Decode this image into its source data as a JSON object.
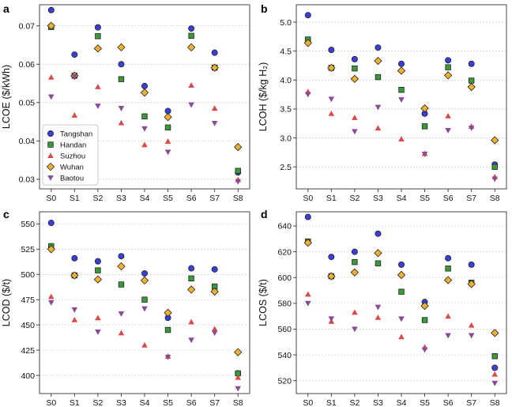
{
  "colors": {
    "Tangshan": "#3b3fd9",
    "Handan": "#3a9a3a",
    "Suzhou": "#d94a4a",
    "Wuhan": "#f2b22e",
    "Baotou": "#8a4a96",
    "grid": "#cccccc"
  },
  "chart_data": [
    {
      "panel": "a",
      "type": "scatter",
      "categories": [
        "S0",
        "S1",
        "S2",
        "S3",
        "S4",
        "S5",
        "S6",
        "S7",
        "S8"
      ],
      "ylabel": "LCOE ($/kWh)",
      "ylim": [
        0.0275,
        0.0755
      ],
      "yticks": [
        0.03,
        0.04,
        0.05,
        0.06,
        0.07
      ],
      "ytick_labels": [
        "0.03",
        "0.04",
        "0.05",
        "0.06",
        "0.07"
      ],
      "grid": "horizontal dashed",
      "legend": "bottom-left",
      "series": [
        {
          "name": "Tangshan",
          "marker": "circle",
          "values": [
            0.0741,
            0.0625,
            0.0696,
            0.06,
            0.0543,
            0.0478,
            0.0693,
            0.063,
            0.0318
          ]
        },
        {
          "name": "Handan",
          "marker": "square",
          "values": [
            0.0697,
            0.057,
            0.0673,
            0.0561,
            0.0464,
            0.0435,
            0.0674,
            0.0591,
            0.0322
          ]
        },
        {
          "name": "Suzhou",
          "marker": "triangle-up",
          "values": [
            0.0566,
            0.0467,
            0.0541,
            0.0447,
            0.039,
            0.0399,
            0.0545,
            0.0485,
            0.0299
          ]
        },
        {
          "name": "Wuhan",
          "marker": "diamond",
          "values": [
            0.07,
            0.057,
            0.0641,
            0.0644,
            0.0526,
            0.0462,
            0.0644,
            0.0591,
            0.0384
          ]
        },
        {
          "name": "Baotou",
          "marker": "triangle-down",
          "values": [
            0.0515,
            0.0568,
            0.0491,
            0.0485,
            0.0432,
            0.0371,
            0.0494,
            0.0446,
            0.0294
          ]
        }
      ]
    },
    {
      "panel": "b",
      "type": "scatter",
      "categories": [
        "S0",
        "S1",
        "S2",
        "S3",
        "S4",
        "S5",
        "S6",
        "S7",
        "S8"
      ],
      "ylabel": "LCOH ($/kg H₂)",
      "ylim": [
        2.12,
        5.3
      ],
      "yticks": [
        2.5,
        3.0,
        3.5,
        4.0,
        4.5,
        5.0
      ],
      "ytick_labels": [
        "2.5",
        "3.0",
        "3.5",
        "4.0",
        "4.5",
        "5.0"
      ],
      "grid": "horizontal dashed",
      "series": [
        {
          "name": "Tangshan",
          "marker": "circle",
          "values": [
            5.12,
            4.52,
            4.36,
            4.56,
            4.28,
            3.42,
            4.34,
            4.28,
            2.54
          ]
        },
        {
          "name": "Handan",
          "marker": "square",
          "values": [
            4.7,
            4.21,
            4.2,
            4.05,
            3.83,
            3.2,
            4.22,
            3.99,
            2.5
          ]
        },
        {
          "name": "Suzhou",
          "marker": "triangle-up",
          "values": [
            3.8,
            3.42,
            3.35,
            3.17,
            2.98,
            2.73,
            3.38,
            3.2,
            2.33
          ]
        },
        {
          "name": "Wuhan",
          "marker": "diamond",
          "values": [
            4.64,
            4.21,
            4.02,
            4.33,
            4.16,
            3.51,
            4.08,
            3.88,
            2.96
          ]
        },
        {
          "name": "Baotou",
          "marker": "triangle-down",
          "values": [
            3.75,
            3.67,
            3.11,
            3.53,
            3.66,
            2.72,
            3.13,
            3.17,
            2.29
          ]
        }
      ]
    },
    {
      "panel": "c",
      "type": "scatter",
      "categories": [
        "S0",
        "S1",
        "S2",
        "S3",
        "S4",
        "S5",
        "S6",
        "S7",
        "S8"
      ],
      "ylabel": "LCOD ($/t)",
      "ylim": [
        382,
        562
      ],
      "yticks": [
        400,
        425,
        450,
        475,
        500,
        525,
        550
      ],
      "ytick_labels": [
        "400",
        "425",
        "450",
        "475",
        "500",
        "525",
        "550"
      ],
      "grid": "horizontal dashed",
      "series": [
        {
          "name": "Tangshan",
          "marker": "circle",
          "values": [
            551,
            516,
            513,
            518,
            501,
            457,
            506,
            505,
            402
          ]
        },
        {
          "name": "Handan",
          "marker": "square",
          "values": [
            528,
            499,
            504,
            490,
            475,
            445,
            496,
            488,
            402
          ]
        },
        {
          "name": "Suzhou",
          "marker": "triangle-up",
          "values": [
            478,
            455,
            457,
            442,
            430,
            419,
            453,
            446,
            398
          ]
        },
        {
          "name": "Wuhan",
          "marker": "diamond",
          "values": [
            525,
            499,
            495,
            508,
            494,
            462,
            485,
            483,
            423
          ]
        },
        {
          "name": "Baotou",
          "marker": "triangle-down",
          "values": [
            472,
            465,
            443,
            461,
            466,
            418,
            435,
            442,
            387
          ]
        }
      ]
    },
    {
      "panel": "d",
      "type": "scatter",
      "categories": [
        "S0",
        "S1",
        "S2",
        "S3",
        "S4",
        "S5",
        "S6",
        "S7",
        "S8"
      ],
      "ylabel": "LCOS ($/t)",
      "ylim": [
        510,
        651
      ],
      "yticks": [
        520,
        540,
        560,
        580,
        600,
        620,
        640
      ],
      "ytick_labels": [
        "520",
        "540",
        "560",
        "580",
        "600",
        "620",
        "640"
      ],
      "grid": "horizontal dashed",
      "series": [
        {
          "name": "Tangshan",
          "marker": "circle",
          "values": [
            647,
            616,
            620,
            634,
            610,
            581,
            615,
            610,
            530
          ]
        },
        {
          "name": "Handan",
          "marker": "square",
          "values": [
            628,
            601,
            612,
            611,
            589,
            567,
            607,
            596,
            539
          ]
        },
        {
          "name": "Suzhou",
          "marker": "triangle-up",
          "values": [
            587,
            566,
            573,
            569,
            554,
            546,
            570,
            563,
            525
          ]
        },
        {
          "name": "Wuhan",
          "marker": "diamond",
          "values": [
            627,
            601,
            604,
            619,
            602,
            578,
            598,
            595,
            557
          ]
        },
        {
          "name": "Baotou",
          "marker": "triangle-down",
          "values": [
            580,
            568,
            560,
            577,
            568,
            544,
            555,
            555,
            518
          ]
        }
      ]
    }
  ]
}
